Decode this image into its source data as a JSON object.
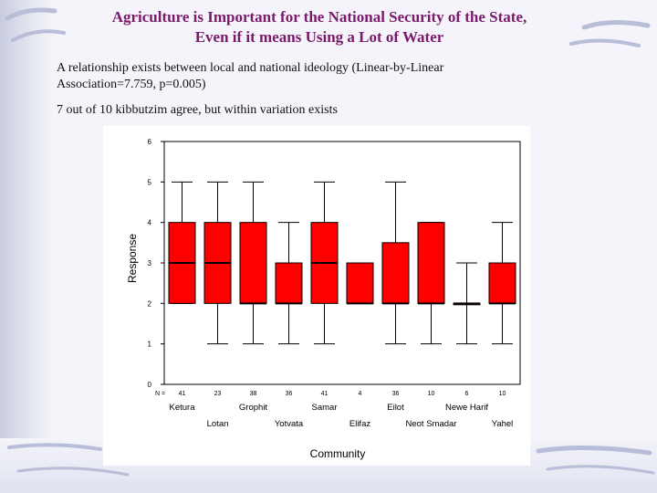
{
  "slide": {
    "title_line1": "Agriculture is Important for the National Security of the State,",
    "title_line2": "Even if it means Using a Lot of Water",
    "text_line1": "A relationship exists between local and national ideology (Linear-by-Linear",
    "text_line2": "Association=7.759, p=0.005)",
    "text_line3": "7 out of 10 kibbutzim agree, but within variation exists"
  },
  "chart_data": {
    "type": "boxplot",
    "ylabel": "Response",
    "xlabel": "Community",
    "ylim": [
      0,
      6
    ],
    "yticks": [
      0,
      1,
      2,
      3,
      4,
      5,
      6
    ],
    "n_label": "N =",
    "box_color": "#ff0000",
    "categories": [
      "Ketura",
      "Lotan",
      "Grophit",
      "Yotvata",
      "Samar",
      "Elifaz",
      "Eilot",
      "Neot Smadar",
      "Newe Harif",
      "Yahel"
    ],
    "n": [
      "41",
      "23",
      "38",
      "36",
      "41",
      "4",
      "36",
      "10",
      "6",
      "10"
    ],
    "boxes": [
      {
        "min": 2,
        "q1": 2,
        "median": 3,
        "q3": 4,
        "max": 5
      },
      {
        "min": 1,
        "q1": 2,
        "median": 3,
        "q3": 4,
        "max": 5
      },
      {
        "min": 1,
        "q1": 2,
        "median": 2,
        "q3": 4,
        "max": 5
      },
      {
        "min": 1,
        "q1": 2,
        "median": 2,
        "q3": 3,
        "max": 4
      },
      {
        "min": 1,
        "q1": 2,
        "median": 3,
        "q3": 4,
        "max": 5
      },
      {
        "min": 2,
        "q1": 2,
        "median": 2,
        "q3": 3,
        "max": 3
      },
      {
        "min": 1,
        "q1": 2,
        "median": 2,
        "q3": 3.5,
        "max": 5
      },
      {
        "min": 1,
        "q1": 2,
        "median": 2,
        "q3": 4,
        "max": 4
      },
      {
        "min": 1,
        "q1": 2,
        "median": 2,
        "q3": 2,
        "max": 3
      },
      {
        "min": 1,
        "q1": 2,
        "median": 2,
        "q3": 3,
        "max": 4
      }
    ]
  }
}
